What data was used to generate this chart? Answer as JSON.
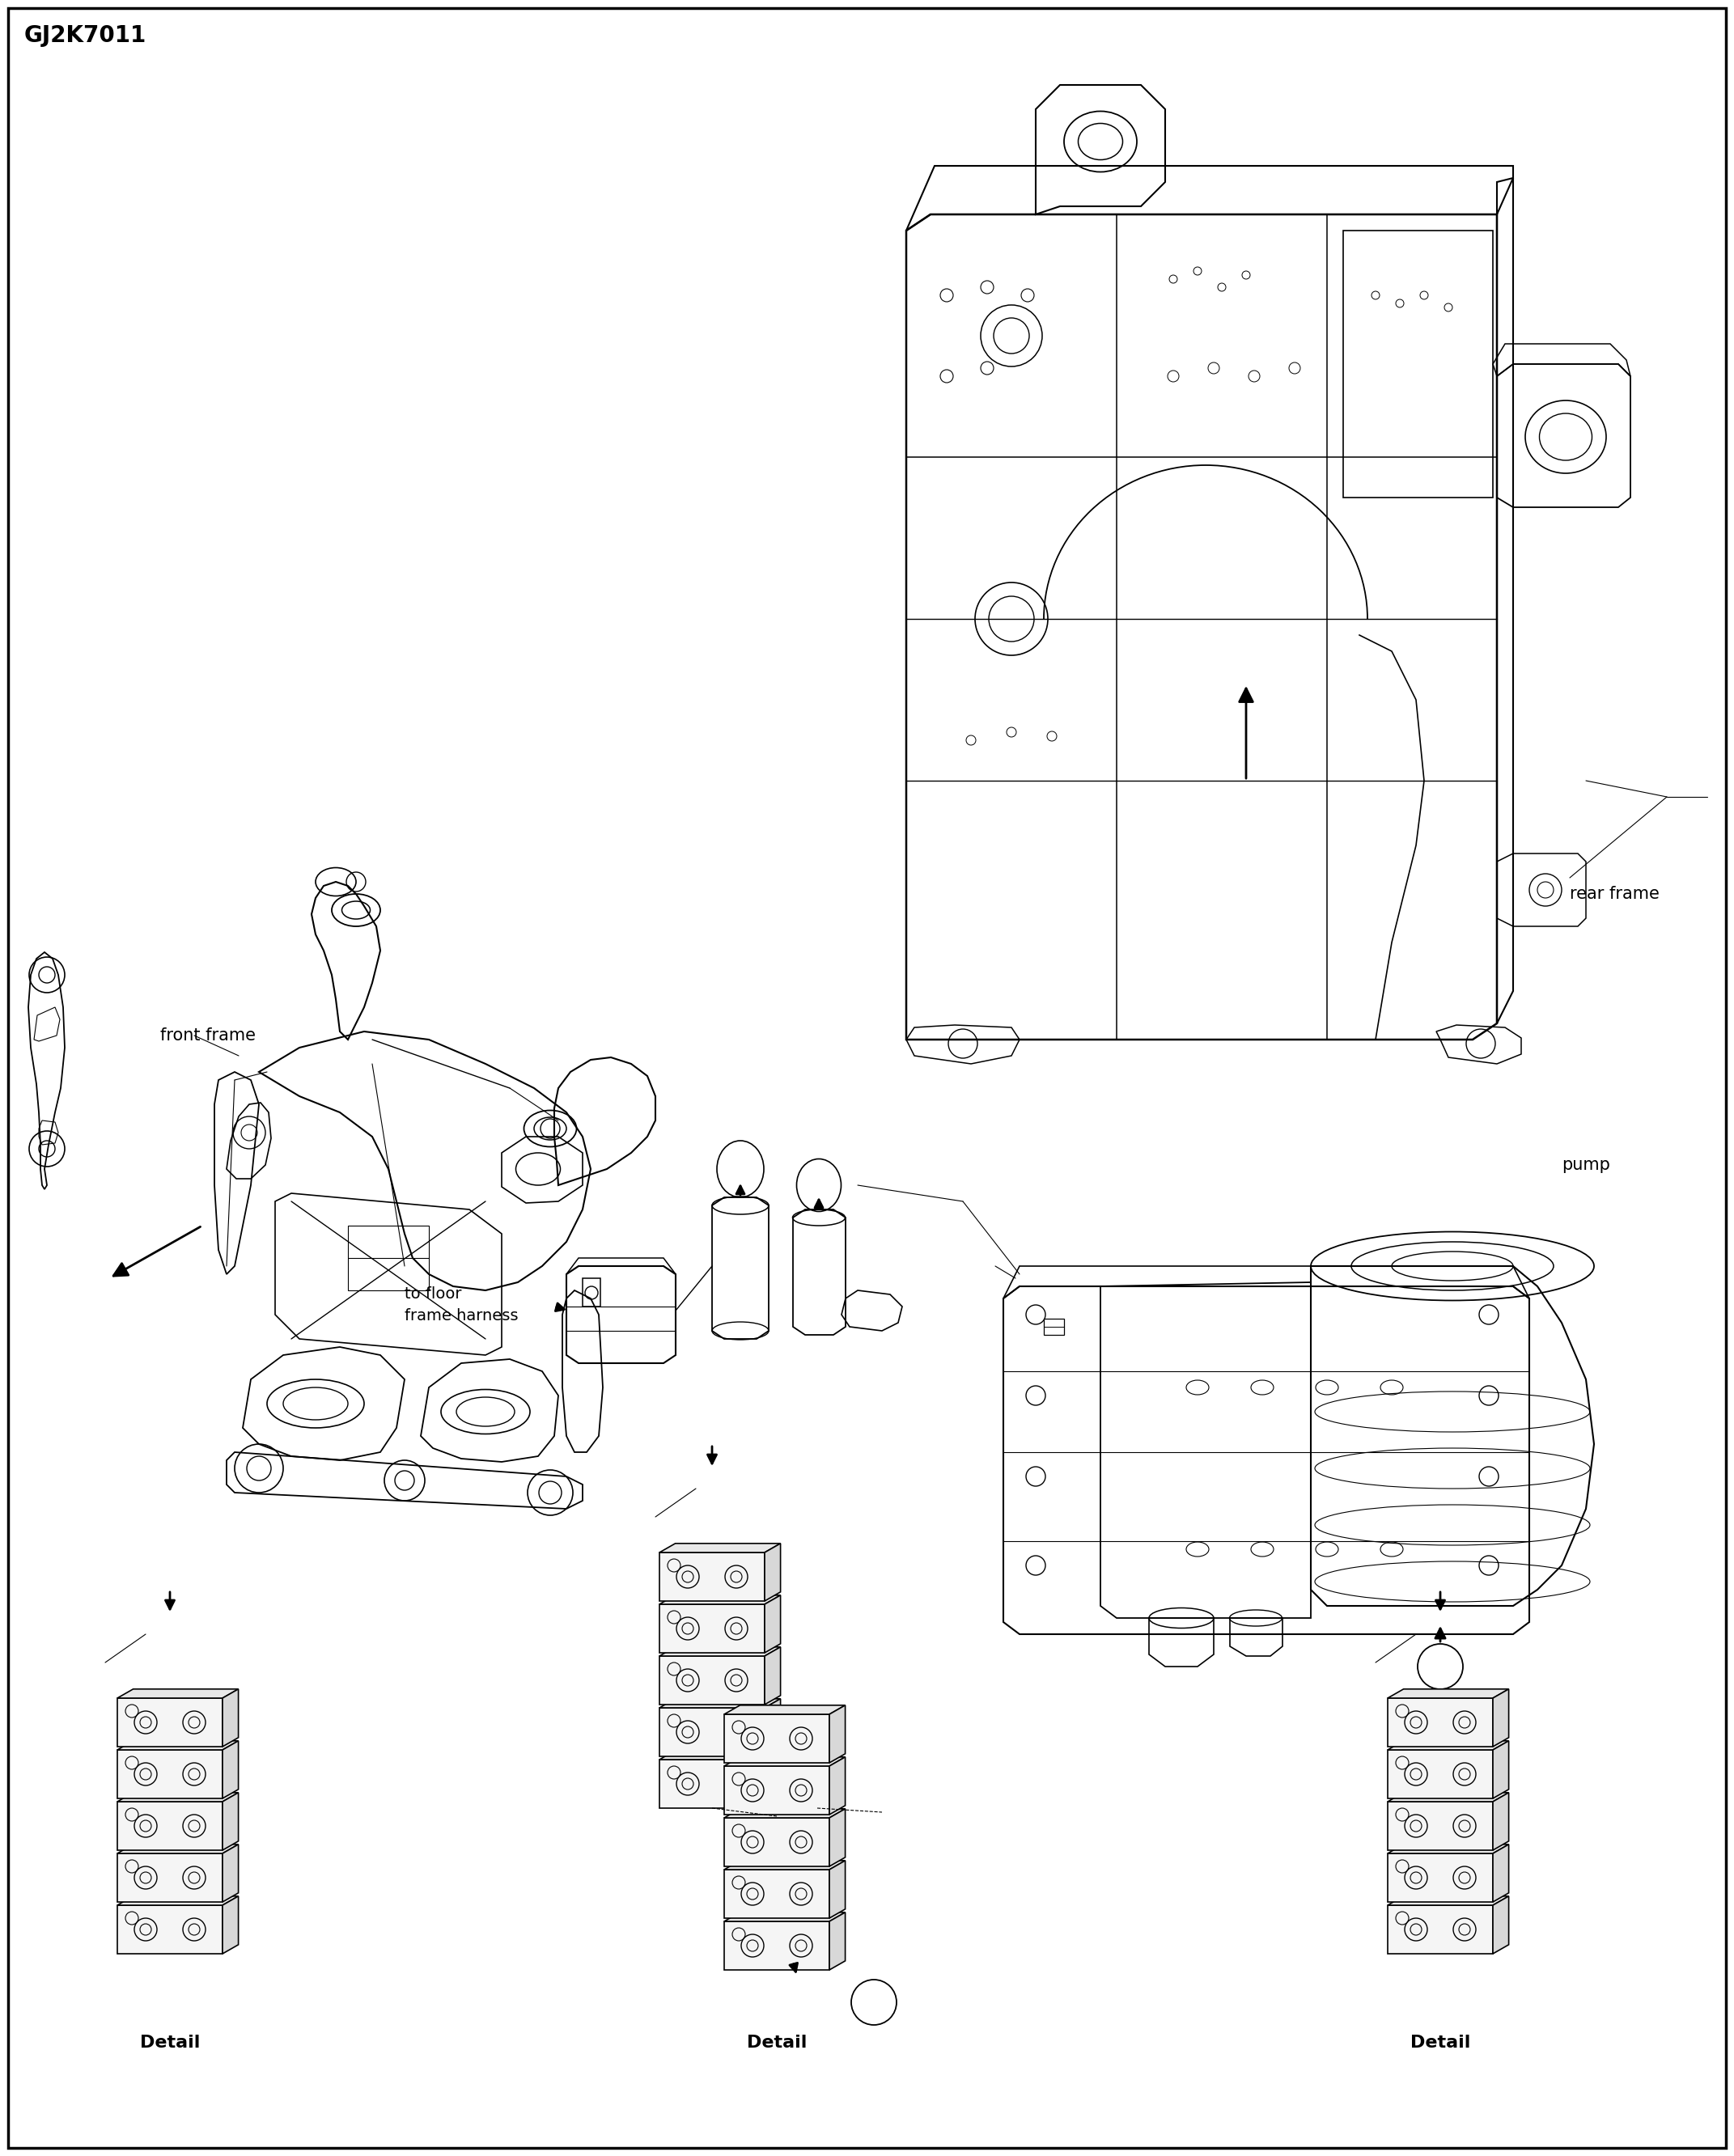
{
  "title": "GJ2K7011",
  "background_color": "#ffffff",
  "line_color": "#000000",
  "labels": {
    "front_frame": "front frame",
    "rear_frame": "rear frame",
    "pump": "pump",
    "to_floor_frame_harness": "to floor\nframe harness",
    "detail": "Detail"
  },
  "title_fontsize": 20,
  "label_fontsize": 13,
  "detail_fontsize": 14
}
